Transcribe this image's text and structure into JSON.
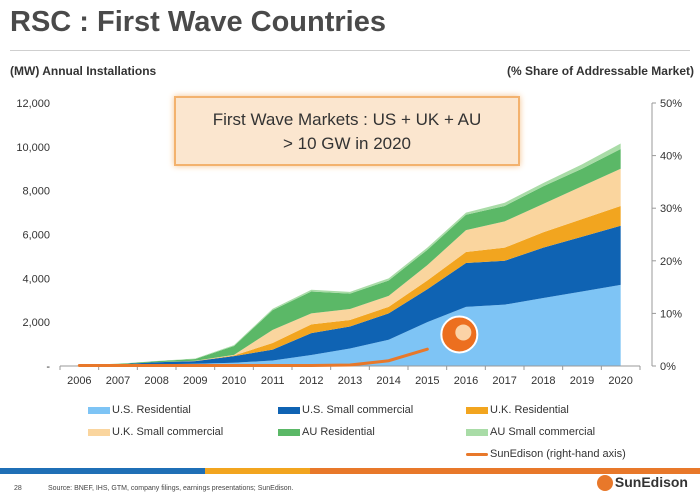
{
  "title": "RSC : First Wave Countries",
  "callout": {
    "line1": "First Wave Markets : US + UK + AU",
    "line2": "> 10 GW in 2020"
  },
  "footer": {
    "page": "28",
    "source": "Source:  BNEF, IHS, GTM, company filings, earnings presentations; SunEdison.",
    "logo": "SunEdison",
    "bar_colors": [
      "#1f6fb6",
      "#f2a51f",
      "#e8782a"
    ]
  },
  "chart_data": {
    "type": "area",
    "stacked": true,
    "title": "",
    "ylabel_left": "(MW) Annual Installations",
    "ylabel_right": "(% Share of Addressable Market)",
    "x": [
      "2006",
      "2007",
      "2008",
      "2009",
      "2010",
      "2011",
      "2012",
      "2013",
      "2014",
      "2015",
      "2016",
      "2017",
      "2018",
      "2019",
      "2020"
    ],
    "ylim": [
      0,
      12000
    ],
    "y_ticks": [
      "-",
      "2,000",
      "4,000",
      "6,000",
      "8,000",
      "10,000",
      "12,000"
    ],
    "y2lim": [
      0,
      50
    ],
    "y2_ticks": [
      "0%",
      "10%",
      "20%",
      "30%",
      "40%",
      "50%"
    ],
    "grid": false,
    "series": [
      {
        "name": "U.S. Residential",
        "color": "#7ec4f5",
        "values": [
          20,
          40,
          80,
          100,
          150,
          250,
          500,
          800,
          1200,
          2000,
          2700,
          2800,
          3100,
          3400,
          3700
        ]
      },
      {
        "name": "U.S. Small commercial",
        "color": "#0f63b3",
        "values": [
          20,
          40,
          90,
          120,
          300,
          500,
          1000,
          1000,
          1200,
          1500,
          2000,
          2000,
          2300,
          2500,
          2700
        ]
      },
      {
        "name": "U.K. Residential",
        "color": "#f2a51f",
        "values": [
          0,
          0,
          0,
          10,
          30,
          300,
          400,
          300,
          300,
          400,
          500,
          600,
          700,
          800,
          900
        ]
      },
      {
        "name": "U.K. Small commercial",
        "color": "#fad59e",
        "values": [
          0,
          0,
          0,
          10,
          30,
          600,
          500,
          500,
          500,
          700,
          1000,
          1200,
          1300,
          1500,
          1700
        ]
      },
      {
        "name": "AU Residential",
        "color": "#5bb867",
        "values": [
          10,
          20,
          50,
          80,
          400,
          900,
          1000,
          700,
          700,
          700,
          700,
          700,
          800,
          800,
          900
        ]
      },
      {
        "name": "AU Small commercial",
        "color": "#a9dca7",
        "values": [
          0,
          0,
          10,
          20,
          40,
          60,
          80,
          80,
          100,
          100,
          100,
          150,
          150,
          200,
          250
        ]
      }
    ],
    "line_series": {
      "name": "SunEdison (right-hand axis)",
      "axis": "right",
      "color": "#e8782a",
      "x": [
        "2006",
        "2007",
        "2008",
        "2009",
        "2010",
        "2011",
        "2012",
        "2013",
        "2014",
        "2015"
      ],
      "values": [
        0.1,
        0.1,
        0.1,
        0.1,
        0.1,
        0.1,
        0.1,
        0.2,
        1.0,
        3.2
      ]
    }
  }
}
